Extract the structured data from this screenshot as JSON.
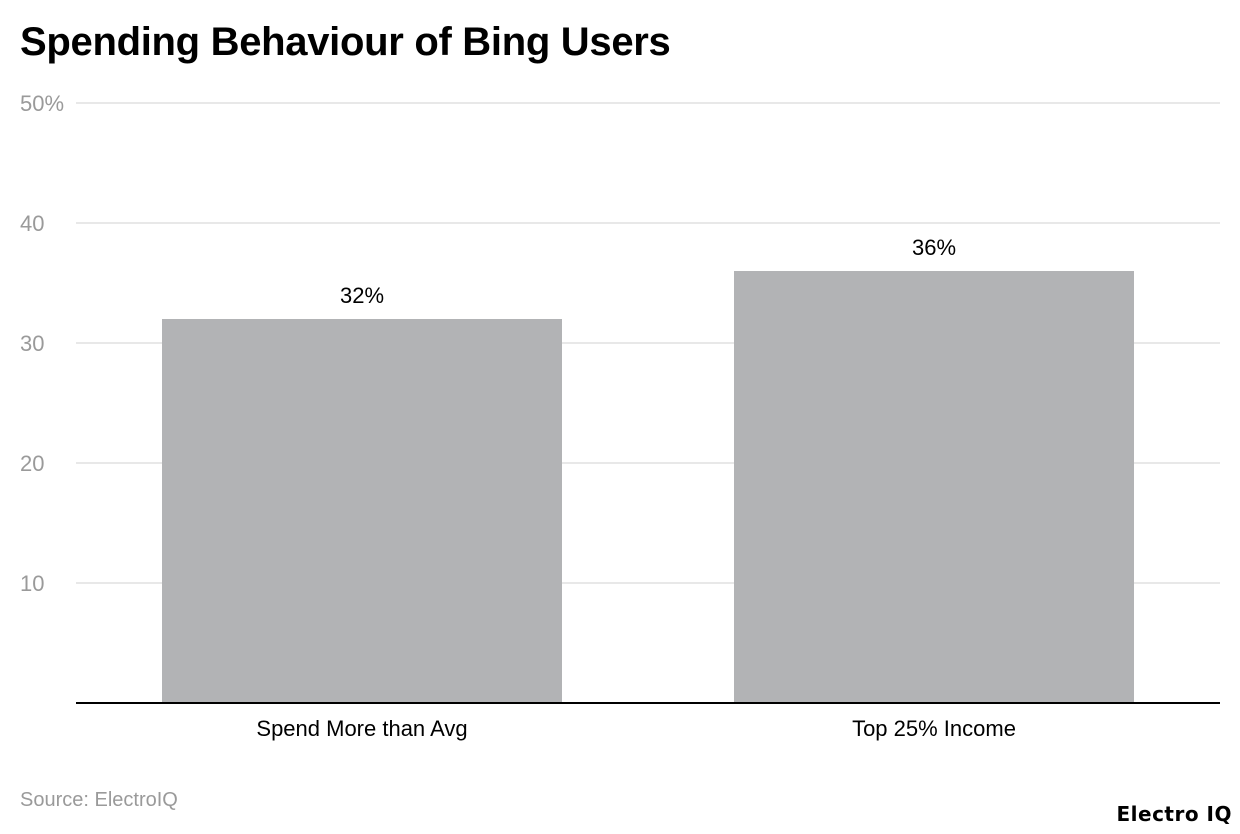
{
  "title": "Spending Behaviour of Bing Users",
  "source": "Source: ElectroIQ",
  "brand": "Electro IQ",
  "colors": {
    "bar": "#b2b3b5",
    "grid": "#e0e0e0",
    "axis": "#000000",
    "tick_label": "#9a9a9a",
    "text": "#000000"
  },
  "chart_data": {
    "type": "bar",
    "categories": [
      "Spend More than Avg",
      "Top 25% Income"
    ],
    "values": [
      32,
      36
    ],
    "data_labels": [
      "32%",
      "36%"
    ],
    "ylim": [
      0,
      50
    ],
    "yticks": [
      10,
      20,
      30,
      40,
      50
    ],
    "ytick_labels": [
      "10",
      "20",
      "30",
      "40",
      "50%"
    ],
    "grid": true,
    "legend": "none"
  }
}
